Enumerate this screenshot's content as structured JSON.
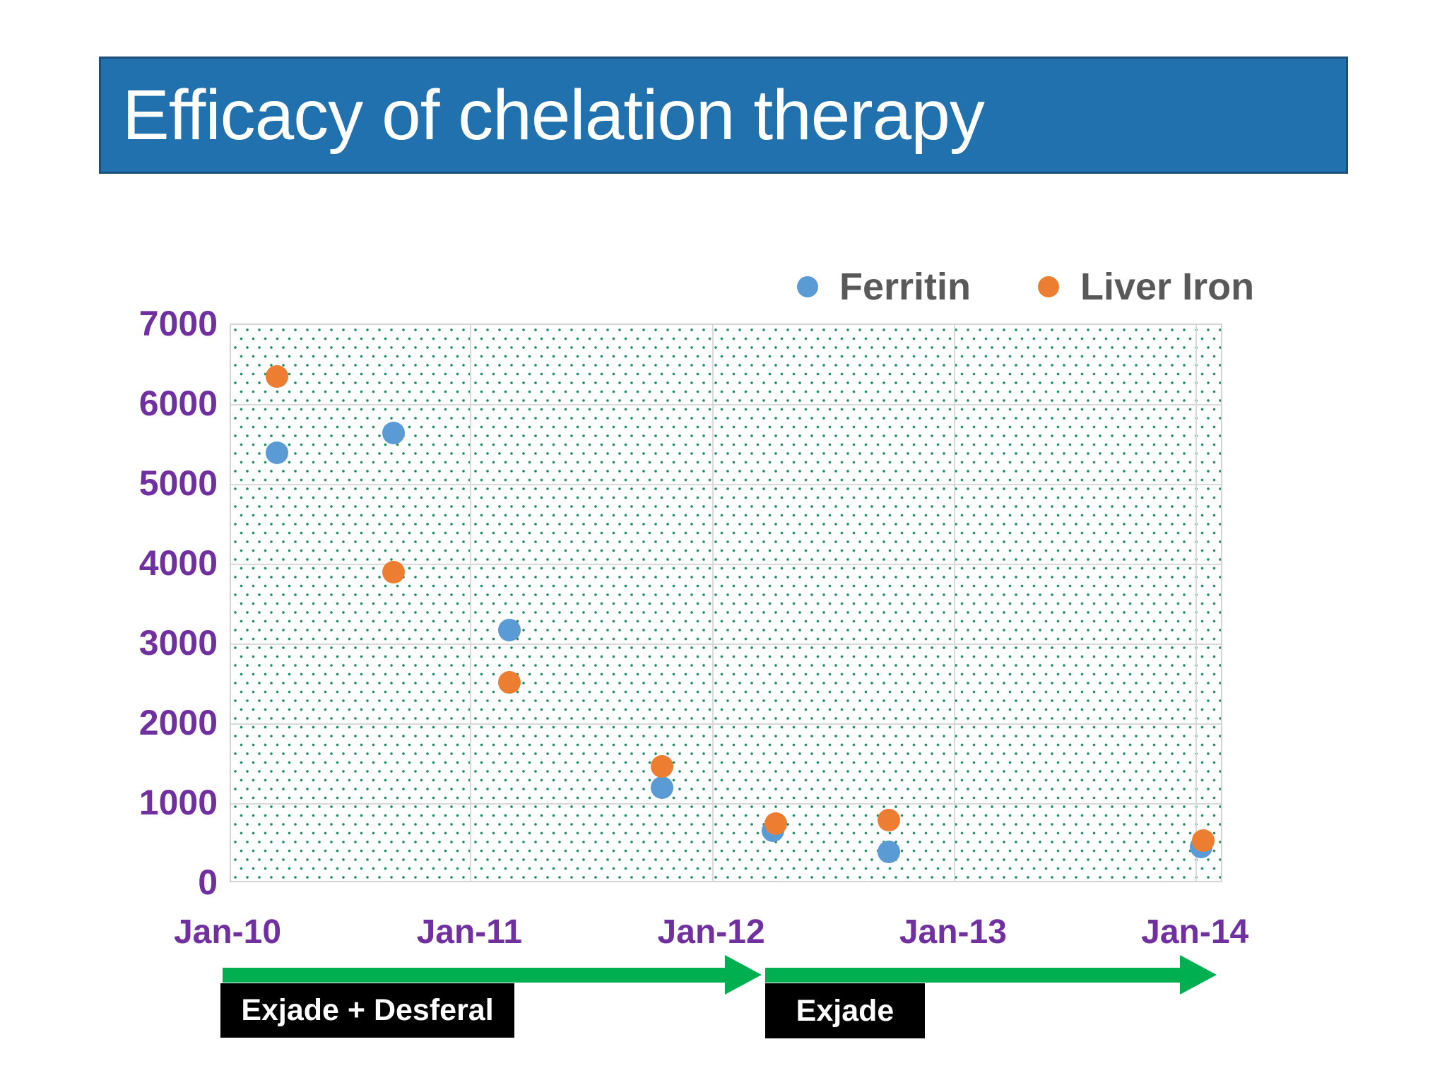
{
  "title": "Efficacy of chelation therapy",
  "legend": {
    "items": [
      {
        "label": "Ferritin",
        "color": "#5B9BD5"
      },
      {
        "label": "Liver Iron",
        "color": "#ED7D31"
      }
    ]
  },
  "chart_data": {
    "type": "scatter",
    "title": "",
    "xlabel": "",
    "ylabel": "",
    "grid": true,
    "legend_position": "top-right",
    "x_axis": {
      "tick_labels": [
        "Jan-10",
        "Jan-11",
        "Jan-12",
        "Jan-13",
        "Jan-14"
      ],
      "unit": "years since Jan-10"
    },
    "y_axis": {
      "min": 0,
      "max": 7000,
      "tick_step": 1000,
      "tick_labels": [
        "0",
        "1000",
        "2000",
        "3000",
        "4000",
        "5000",
        "6000",
        "7000"
      ]
    },
    "series": [
      {
        "name": "Ferritin",
        "color": "#5B9BD5",
        "points": [
          {
            "date": "Mar-10",
            "x": 0.2,
            "y": 5400
          },
          {
            "date": "Sep-10",
            "x": 0.68,
            "y": 5650
          },
          {
            "date": "Mar-11",
            "x": 1.16,
            "y": 3180
          },
          {
            "date": "Oct-11",
            "x": 1.79,
            "y": 1200
          },
          {
            "date": "Apr-12",
            "x": 2.25,
            "y": 660
          },
          {
            "date": "Sep-12",
            "x": 2.73,
            "y": 400
          },
          {
            "date": "Jan-14",
            "x": 4.02,
            "y": 460
          }
        ]
      },
      {
        "name": "Liver Iron",
        "color": "#ED7D31",
        "points": [
          {
            "date": "Mar-10",
            "x": 0.2,
            "y": 6350
          },
          {
            "date": "Sep-10",
            "x": 0.68,
            "y": 3900
          },
          {
            "date": "Mar-11",
            "x": 1.16,
            "y": 2520
          },
          {
            "date": "Oct-11",
            "x": 1.79,
            "y": 1470
          },
          {
            "date": "Apr-12",
            "x": 2.26,
            "y": 750
          },
          {
            "date": "Sep-12",
            "x": 2.73,
            "y": 800
          },
          {
            "date": "Jan-14",
            "x": 4.03,
            "y": 540
          }
        ]
      }
    ]
  },
  "timeline": {
    "phases": [
      {
        "label": "Exjade + Desferal"
      },
      {
        "label": "Exjade"
      }
    ],
    "arrow_color": "#00B050"
  },
  "colors": {
    "banner_fill": "#2171AE",
    "banner_border": "#1F4E79",
    "axis_label": "#7030A0",
    "legend_text": "#595959",
    "gridline": "#d9d9d9",
    "plot_dot_pattern": "#1e8a60",
    "phase_box_bg": "#000000",
    "phase_box_text": "#ffffff"
  }
}
